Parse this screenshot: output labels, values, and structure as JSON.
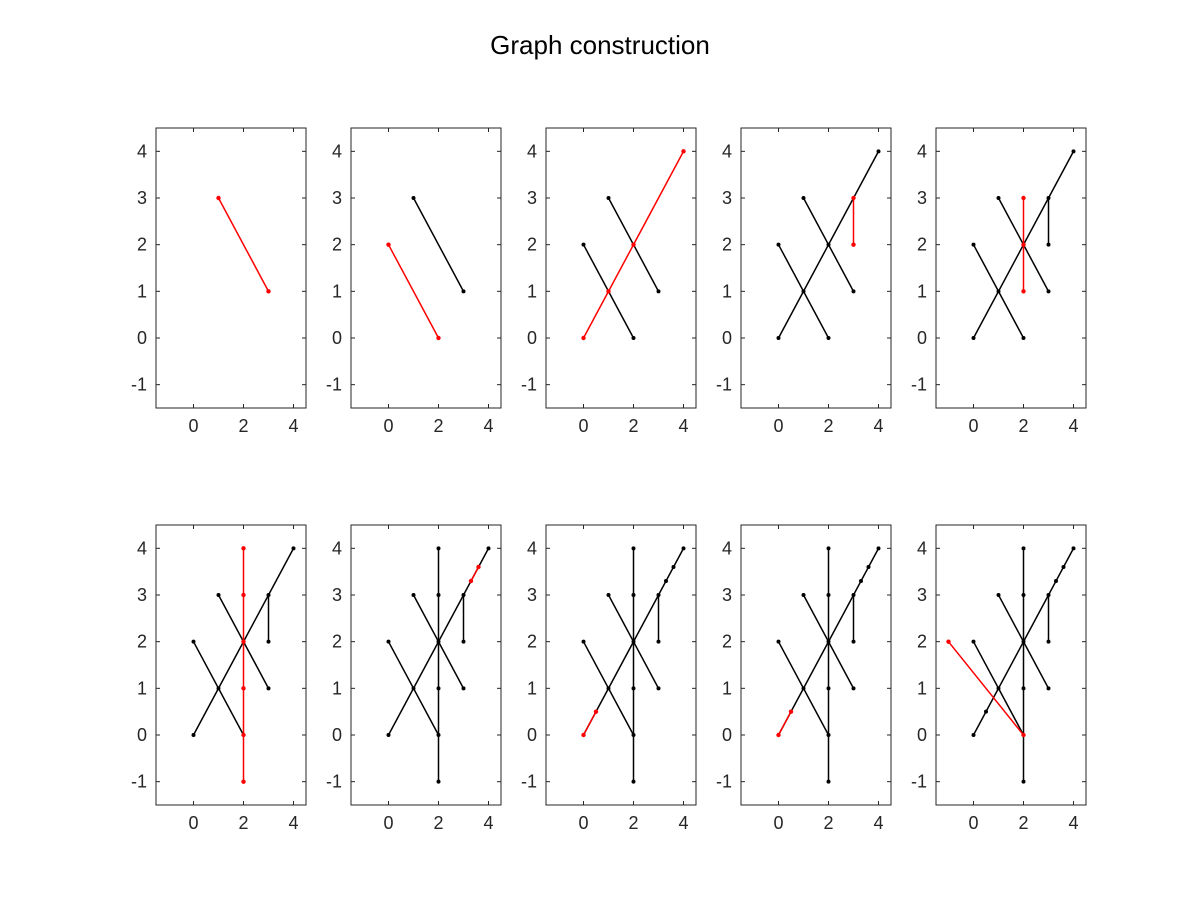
{
  "figure": {
    "title": "Graph construction"
  },
  "colors": {
    "highlight": "#ff0000",
    "existing": "#000000",
    "axis": "#262626"
  },
  "chart_data": [
    {
      "type": "line",
      "step": 1,
      "xlim": [
        -1.5,
        4.5
      ],
      "ylim": [
        -1.5,
        4.5
      ],
      "xticks": [
        0,
        2,
        4
      ],
      "yticks": [
        -1,
        0,
        1,
        2,
        3,
        4
      ],
      "grid": false,
      "black_edges": [],
      "red_edges": [
        [
          [
            1,
            3
          ],
          [
            3,
            1
          ]
        ]
      ],
      "black_points": [],
      "red_points": [
        [
          1,
          3
        ],
        [
          3,
          1
        ]
      ]
    },
    {
      "type": "line",
      "step": 2,
      "xlim": [
        -1.5,
        4.5
      ],
      "ylim": [
        -1.5,
        4.5
      ],
      "xticks": [
        0,
        2,
        4
      ],
      "yticks": [
        -1,
        0,
        1,
        2,
        3,
        4
      ],
      "grid": false,
      "black_edges": [
        [
          [
            1,
            3
          ],
          [
            3,
            1
          ]
        ]
      ],
      "red_edges": [
        [
          [
            0,
            2
          ],
          [
            2,
            0
          ]
        ]
      ],
      "black_points": [
        [
          1,
          3
        ],
        [
          3,
          1
        ]
      ],
      "red_points": [
        [
          0,
          2
        ],
        [
          2,
          0
        ]
      ]
    },
    {
      "type": "line",
      "step": 3,
      "xlim": [
        -1.5,
        4.5
      ],
      "ylim": [
        -1.5,
        4.5
      ],
      "xticks": [
        0,
        2,
        4
      ],
      "yticks": [
        -1,
        0,
        1,
        2,
        3,
        4
      ],
      "grid": false,
      "black_edges": [
        [
          [
            1,
            3
          ],
          [
            3,
            1
          ]
        ],
        [
          [
            0,
            2
          ],
          [
            2,
            0
          ]
        ]
      ],
      "red_edges": [
        [
          [
            0,
            0
          ],
          [
            4,
            4
          ]
        ]
      ],
      "black_points": [
        [
          1,
          3
        ],
        [
          3,
          1
        ],
        [
          0,
          2
        ],
        [
          2,
          0
        ]
      ],
      "red_points": [
        [
          0,
          0
        ],
        [
          1,
          1
        ],
        [
          2,
          2
        ],
        [
          4,
          4
        ]
      ]
    },
    {
      "type": "line",
      "step": 4,
      "xlim": [
        -1.5,
        4.5
      ],
      "ylim": [
        -1.5,
        4.5
      ],
      "xticks": [
        0,
        2,
        4
      ],
      "yticks": [
        -1,
        0,
        1,
        2,
        3,
        4
      ],
      "grid": false,
      "black_edges": [
        [
          [
            1,
            3
          ],
          [
            3,
            1
          ]
        ],
        [
          [
            0,
            2
          ],
          [
            2,
            0
          ]
        ],
        [
          [
            0,
            0
          ],
          [
            4,
            4
          ]
        ]
      ],
      "red_edges": [
        [
          [
            3,
            3
          ],
          [
            3,
            2
          ]
        ]
      ],
      "black_points": [
        [
          1,
          3
        ],
        [
          3,
          1
        ],
        [
          0,
          2
        ],
        [
          2,
          0
        ],
        [
          0,
          0
        ],
        [
          1,
          1
        ],
        [
          2,
          2
        ],
        [
          4,
          4
        ]
      ],
      "red_points": [
        [
          3,
          3
        ],
        [
          3,
          2
        ]
      ]
    },
    {
      "type": "line",
      "step": 5,
      "xlim": [
        -1.5,
        4.5
      ],
      "ylim": [
        -1.5,
        4.5
      ],
      "xticks": [
        0,
        2,
        4
      ],
      "yticks": [
        -1,
        0,
        1,
        2,
        3,
        4
      ],
      "grid": false,
      "black_edges": [
        [
          [
            1,
            3
          ],
          [
            3,
            1
          ]
        ],
        [
          [
            0,
            2
          ],
          [
            2,
            0
          ]
        ],
        [
          [
            0,
            0
          ],
          [
            4,
            4
          ]
        ],
        [
          [
            3,
            3
          ],
          [
            3,
            2
          ]
        ]
      ],
      "red_edges": [
        [
          [
            2,
            3
          ],
          [
            2,
            1
          ]
        ]
      ],
      "black_points": [
        [
          1,
          3
        ],
        [
          3,
          1
        ],
        [
          0,
          2
        ],
        [
          2,
          0
        ],
        [
          0,
          0
        ],
        [
          1,
          1
        ],
        [
          4,
          4
        ],
        [
          3,
          3
        ],
        [
          3,
          2
        ]
      ],
      "red_points": [
        [
          2,
          3
        ],
        [
          2,
          2
        ],
        [
          2,
          1
        ]
      ]
    },
    {
      "type": "line",
      "step": 6,
      "xlim": [
        -1.5,
        4.5
      ],
      "ylim": [
        -1.5,
        4.5
      ],
      "xticks": [
        0,
        2,
        4
      ],
      "yticks": [
        -1,
        0,
        1,
        2,
        3,
        4
      ],
      "grid": false,
      "black_edges": [
        [
          [
            1,
            3
          ],
          [
            3,
            1
          ]
        ],
        [
          [
            0,
            2
          ],
          [
            2,
            0
          ]
        ],
        [
          [
            0,
            0
          ],
          [
            4,
            4
          ]
        ],
        [
          [
            3,
            3
          ],
          [
            3,
            2
          ]
        ]
      ],
      "red_edges": [
        [
          [
            2,
            4
          ],
          [
            2,
            -1
          ]
        ]
      ],
      "black_points": [
        [
          1,
          3
        ],
        [
          3,
          1
        ],
        [
          0,
          2
        ],
        [
          0,
          0
        ],
        [
          1,
          1
        ],
        [
          4,
          4
        ],
        [
          3,
          3
        ],
        [
          3,
          2
        ]
      ],
      "red_points": [
        [
          2,
          4
        ],
        [
          2,
          3
        ],
        [
          2,
          2
        ],
        [
          2,
          1
        ],
        [
          2,
          0
        ],
        [
          2,
          -1
        ]
      ]
    },
    {
      "type": "line",
      "step": 7,
      "xlim": [
        -1.5,
        4.5
      ],
      "ylim": [
        -1.5,
        4.5
      ],
      "xticks": [
        0,
        2,
        4
      ],
      "yticks": [
        -1,
        0,
        1,
        2,
        3,
        4
      ],
      "grid": false,
      "black_edges": [
        [
          [
            1,
            3
          ],
          [
            3,
            1
          ]
        ],
        [
          [
            0,
            2
          ],
          [
            2,
            0
          ]
        ],
        [
          [
            0,
            0
          ],
          [
            4,
            4
          ]
        ],
        [
          [
            3,
            3
          ],
          [
            3,
            2
          ]
        ],
        [
          [
            2,
            4
          ],
          [
            2,
            -1
          ]
        ]
      ],
      "red_edges": [
        [
          [
            3.3,
            3.3
          ],
          [
            3.6,
            3.6
          ]
        ]
      ],
      "black_points": [
        [
          1,
          3
        ],
        [
          3,
          1
        ],
        [
          0,
          2
        ],
        [
          0,
          0
        ],
        [
          1,
          1
        ],
        [
          4,
          4
        ],
        [
          3,
          3
        ],
        [
          3,
          2
        ],
        [
          2,
          4
        ],
        [
          2,
          3
        ],
        [
          2,
          2
        ],
        [
          2,
          1
        ],
        [
          2,
          0
        ],
        [
          2,
          -1
        ]
      ],
      "red_points": [
        [
          3.3,
          3.3
        ],
        [
          3.6,
          3.6
        ]
      ]
    },
    {
      "type": "line",
      "step": 8,
      "xlim": [
        -1.5,
        4.5
      ],
      "ylim": [
        -1.5,
        4.5
      ],
      "xticks": [
        0,
        2,
        4
      ],
      "yticks": [
        -1,
        0,
        1,
        2,
        3,
        4
      ],
      "grid": false,
      "black_edges": [
        [
          [
            1,
            3
          ],
          [
            3,
            1
          ]
        ],
        [
          [
            0,
            2
          ],
          [
            2,
            0
          ]
        ],
        [
          [
            0,
            0
          ],
          [
            4,
            4
          ]
        ],
        [
          [
            3,
            3
          ],
          [
            3,
            2
          ]
        ],
        [
          [
            2,
            4
          ],
          [
            2,
            -1
          ]
        ]
      ],
      "red_edges": [
        [
          [
            0,
            0
          ],
          [
            0.5,
            0.5
          ]
        ]
      ],
      "black_points": [
        [
          1,
          3
        ],
        [
          3,
          1
        ],
        [
          0,
          2
        ],
        [
          1,
          1
        ],
        [
          4,
          4
        ],
        [
          3,
          3
        ],
        [
          3,
          2
        ],
        [
          2,
          4
        ],
        [
          2,
          3
        ],
        [
          2,
          2
        ],
        [
          2,
          1
        ],
        [
          2,
          0
        ],
        [
          2,
          -1
        ],
        [
          3.3,
          3.3
        ],
        [
          3.6,
          3.6
        ]
      ],
      "red_points": [
        [
          0,
          0
        ],
        [
          0.5,
          0.5
        ]
      ]
    },
    {
      "type": "line",
      "step": 9,
      "xlim": [
        -1.5,
        4.5
      ],
      "ylim": [
        -1.5,
        4.5
      ],
      "xticks": [
        0,
        2,
        4
      ],
      "yticks": [
        -1,
        0,
        1,
        2,
        3,
        4
      ],
      "grid": false,
      "black_edges": [
        [
          [
            1,
            3
          ],
          [
            3,
            1
          ]
        ],
        [
          [
            0,
            2
          ],
          [
            2,
            0
          ]
        ],
        [
          [
            0,
            0
          ],
          [
            4,
            4
          ]
        ],
        [
          [
            3,
            3
          ],
          [
            3,
            2
          ]
        ],
        [
          [
            2,
            4
          ],
          [
            2,
            -1
          ]
        ]
      ],
      "red_edges": [
        [
          [
            0,
            0
          ],
          [
            0.5,
            0.5
          ]
        ]
      ],
      "black_points": [
        [
          1,
          3
        ],
        [
          3,
          1
        ],
        [
          0,
          2
        ],
        [
          1,
          1
        ],
        [
          4,
          4
        ],
        [
          3,
          3
        ],
        [
          3,
          2
        ],
        [
          2,
          4
        ],
        [
          2,
          3
        ],
        [
          2,
          2
        ],
        [
          2,
          1
        ],
        [
          2,
          0
        ],
        [
          2,
          -1
        ],
        [
          3.3,
          3.3
        ],
        [
          3.6,
          3.6
        ]
      ],
      "red_points": [
        [
          0,
          0
        ],
        [
          0.5,
          0.5
        ]
      ]
    },
    {
      "type": "line",
      "step": 10,
      "xlim": [
        -1.5,
        4.5
      ],
      "ylim": [
        -1.5,
        4.5
      ],
      "xticks": [
        0,
        2,
        4
      ],
      "yticks": [
        -1,
        0,
        1,
        2,
        3,
        4
      ],
      "grid": false,
      "black_edges": [
        [
          [
            1,
            3
          ],
          [
            3,
            1
          ]
        ],
        [
          [
            0,
            2
          ],
          [
            2,
            0
          ]
        ],
        [
          [
            0,
            0
          ],
          [
            4,
            4
          ]
        ],
        [
          [
            3,
            3
          ],
          [
            3,
            2
          ]
        ],
        [
          [
            2,
            4
          ],
          [
            2,
            -1
          ]
        ]
      ],
      "red_edges": [
        [
          [
            -1,
            2
          ],
          [
            2,
            0
          ]
        ]
      ],
      "black_points": [
        [
          1,
          3
        ],
        [
          3,
          1
        ],
        [
          0,
          2
        ],
        [
          0,
          0
        ],
        [
          0.5,
          0.5
        ],
        [
          1,
          1
        ],
        [
          4,
          4
        ],
        [
          3,
          3
        ],
        [
          3,
          2
        ],
        [
          2,
          4
        ],
        [
          2,
          3
        ],
        [
          2,
          2
        ],
        [
          2,
          1
        ],
        [
          2,
          -1
        ],
        [
          3.3,
          3.3
        ],
        [
          3.6,
          3.6
        ]
      ],
      "red_points": [
        [
          -1,
          2
        ],
        [
          2,
          0
        ]
      ]
    }
  ]
}
